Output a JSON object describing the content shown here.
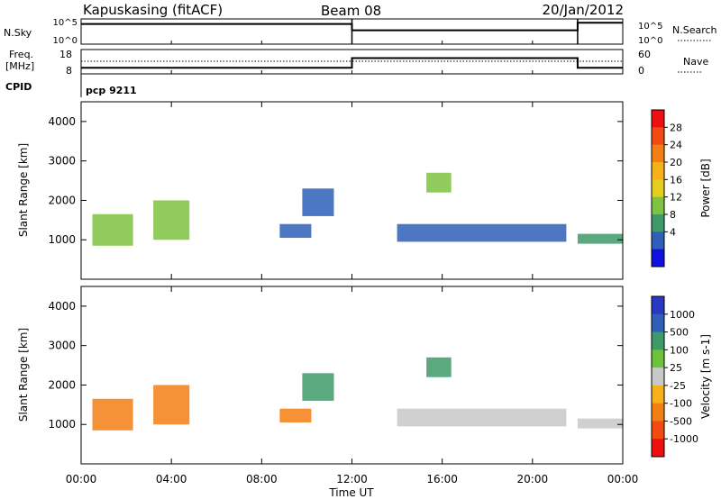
{
  "header": {
    "station": "Kapuskasing (fitACF)",
    "beam": "Beam 08",
    "date": "20/Jan/2012"
  },
  "noise_panel": {
    "left_label": "N.Sky",
    "left_ticks": [
      "10^5",
      "10^0"
    ],
    "right_ticks": [
      "10^5",
      "10^0"
    ],
    "right_label": "N.Search"
  },
  "freq_panel": {
    "left_label": "Freq.",
    "left_unit": "[MHz]",
    "left_ticks": [
      "18",
      "8"
    ],
    "right_ticks": [
      "60",
      "0"
    ],
    "right_label": "Nave"
  },
  "cpid_panel": {
    "label": "CPID",
    "value": "pcp 9211"
  },
  "range_panel": {
    "ylabel": "Slant Range [km]",
    "yticks": [
      "4000",
      "3000",
      "2000",
      "1000"
    ]
  },
  "power_colorbar": {
    "label": "Power [dB]",
    "ticks": [
      "28",
      "24",
      "20",
      "16",
      "12",
      "8",
      "4"
    ],
    "colors": [
      "#ee1010",
      "#f14b12",
      "#f37f14",
      "#f5b01a",
      "#e3cd1f",
      "#7ec23f",
      "#3f9a6a",
      "#2f5fb8",
      "#1010e0"
    ]
  },
  "velocity_colorbar": {
    "label": "Velocity [m s-1]",
    "ticks": [
      "1000",
      "500",
      "100",
      "25",
      "-25",
      "-100",
      "-500",
      "-1000"
    ],
    "colors": [
      "#2838c0",
      "#2f5fb8",
      "#3f9a6a",
      "#6cc23a",
      "#c8c8c8",
      "#f5b01a",
      "#f37f14",
      "#f14b12",
      "#ee1010"
    ]
  },
  "time_axis": {
    "xlabel": "Time UT",
    "ticks": [
      "00:00",
      "04:00",
      "08:00",
      "12:00",
      "16:00",
      "20:00",
      "00:00"
    ]
  },
  "chart_data": {
    "type": "heatmap",
    "x_unit": "hours UT",
    "xlim": [
      0,
      24
    ],
    "ylim": [
      0,
      4500
    ],
    "mode_change_hours": [
      12,
      22
    ],
    "noise_levels": [
      {
        "from": 0,
        "to": 12,
        "level": 0.8
      },
      {
        "from": 12,
        "to": 22,
        "level": 0.55
      },
      {
        "from": 22,
        "to": 24,
        "level": 0.85
      }
    ],
    "frequency_mhz": [
      {
        "from": 0,
        "to": 12,
        "value": 10.5
      },
      {
        "from": 12,
        "to": 22,
        "value": 14.5
      },
      {
        "from": 22,
        "to": 24,
        "value": 10.5
      }
    ],
    "nave_level": 20,
    "power_regions": [
      {
        "t0": 0.5,
        "t1": 2.3,
        "r0": 850,
        "r1": 1650,
        "value": 14
      },
      {
        "t0": 3.2,
        "t1": 4.8,
        "r0": 1000,
        "r1": 2000,
        "value": 12
      },
      {
        "t0": 8.8,
        "t1": 10.2,
        "r0": 1050,
        "r1": 1400,
        "value": 7
      },
      {
        "t0": 9.8,
        "t1": 11.2,
        "r0": 1600,
        "r1": 2300,
        "value": 6
      },
      {
        "t0": 14.0,
        "t1": 21.5,
        "r0": 950,
        "r1": 1400,
        "value": 7
      },
      {
        "t0": 15.3,
        "t1": 16.4,
        "r0": 2200,
        "r1": 2700,
        "value": 14
      },
      {
        "t0": 22.0,
        "t1": 24.0,
        "r0": 900,
        "r1": 1150,
        "value": 10
      }
    ],
    "velocity_regions": [
      {
        "t0": 0.5,
        "t1": 2.3,
        "r0": 850,
        "r1": 1650,
        "value": -300
      },
      {
        "t0": 3.2,
        "t1": 4.8,
        "r0": 1000,
        "r1": 2000,
        "value": -300
      },
      {
        "t0": 8.8,
        "t1": 10.2,
        "r0": 1050,
        "r1": 1400,
        "value": -150
      },
      {
        "t0": 9.8,
        "t1": 11.2,
        "r0": 1600,
        "r1": 2300,
        "value": 80
      },
      {
        "t0": 14.0,
        "t1": 21.5,
        "r0": 950,
        "r1": 1400,
        "value": 0
      },
      {
        "t0": 15.3,
        "t1": 16.4,
        "r0": 2200,
        "r1": 2700,
        "value": 200
      },
      {
        "t0": 22.0,
        "t1": 24.0,
        "r0": 900,
        "r1": 1150,
        "value": 0
      }
    ]
  }
}
